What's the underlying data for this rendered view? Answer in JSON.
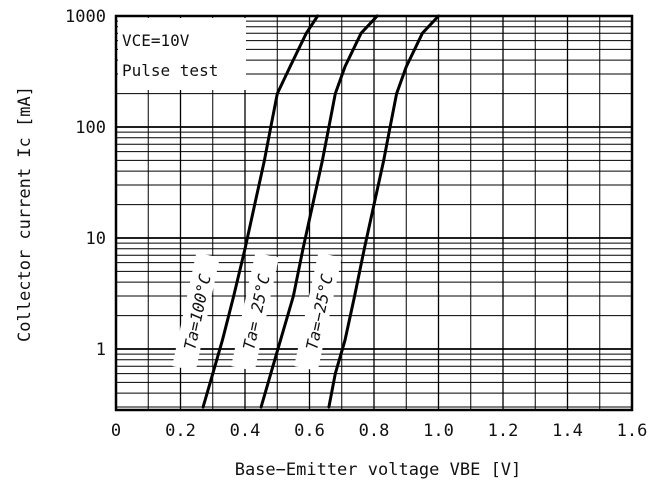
{
  "chart_data": {
    "type": "line",
    "xlabel": "Base−Emitter voltage VBE [V]",
    "ylabel": "Collector current Ic [mA]",
    "x_scale": "linear",
    "y_scale": "log",
    "xlim": [
      0,
      1.6
    ],
    "ylim": [
      0.3,
      1000
    ],
    "x_ticks": [
      0,
      0.2,
      0.4,
      0.6,
      0.8,
      1.0,
      1.2,
      1.4,
      1.6
    ],
    "x_tick_labels": [
      "0",
      "0.2",
      "0.4",
      "0.6",
      "0.8",
      "1.0",
      "1.2",
      "1.4",
      "1.6"
    ],
    "y_ticks": [
      1,
      10,
      100,
      1000
    ],
    "y_tick_labels": [
      "1",
      "10",
      "100",
      "1000"
    ],
    "grid": true,
    "annotations": {
      "condition_line1": "VCE=10V",
      "condition_line2": "Pulse test"
    },
    "series": [
      {
        "name": "Ta=100°C",
        "x": [
          0.27,
          0.3,
          0.33,
          0.365,
          0.4,
          0.43,
          0.46,
          0.48,
          0.5,
          0.54,
          0.59,
          0.625
        ],
        "y": [
          0.3,
          0.6,
          1.2,
          3,
          8,
          20,
          50,
          100,
          200,
          350,
          700,
          1000
        ]
      },
      {
        "name": "Ta= 25°C",
        "x": [
          0.45,
          0.48,
          0.51,
          0.55,
          0.58,
          0.61,
          0.64,
          0.66,
          0.68,
          0.71,
          0.76,
          0.81
        ],
        "y": [
          0.3,
          0.6,
          1.2,
          3,
          8,
          20,
          50,
          100,
          200,
          350,
          700,
          1000
        ]
      },
      {
        "name": "Ta=−25°C",
        "x": [
          0.66,
          0.68,
          0.71,
          0.74,
          0.77,
          0.8,
          0.83,
          0.85,
          0.87,
          0.9,
          0.95,
          1.0
        ],
        "y": [
          0.3,
          0.6,
          1.2,
          3,
          8,
          20,
          50,
          100,
          200,
          350,
          700,
          1000
        ]
      }
    ]
  }
}
